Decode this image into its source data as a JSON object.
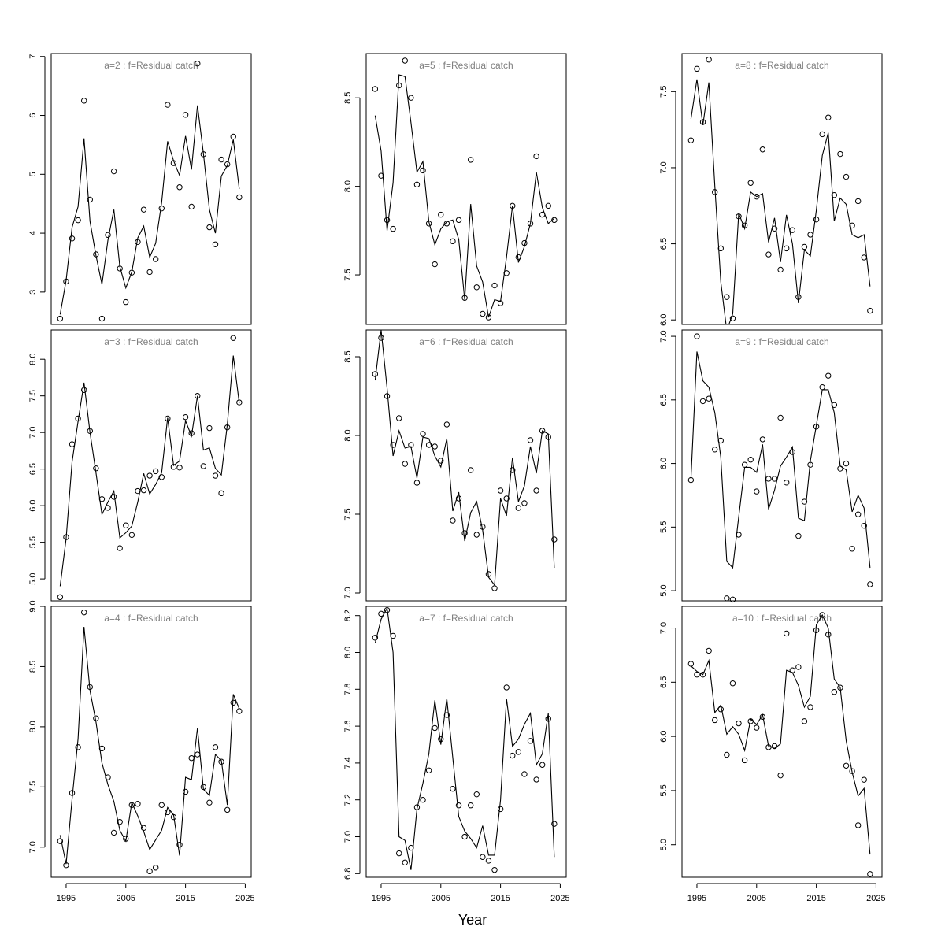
{
  "figure": {
    "xlabel": "Year",
    "x_ticks": [
      1995,
      2005,
      2015,
      2025
    ],
    "x_tick_labels": [
      "1995",
      "2005",
      "2015",
      "2025"
    ]
  },
  "chart_data": [
    {
      "type": "scatter+line",
      "title": "a=2  :  f=Residual catch",
      "xlim": [
        1992.5,
        2026
      ],
      "ylim": [
        2.45,
        7.05
      ],
      "y_ticks": [
        3,
        4,
        5,
        6,
        7
      ],
      "y_tick_labels": [
        "3",
        "4",
        "5",
        "6",
        "7"
      ],
      "x": [
        1994,
        1995,
        1996,
        1997,
        1998,
        1999,
        2000,
        2001,
        2002,
        2003,
        2004,
        2005,
        2006,
        2007,
        2008,
        2009,
        2010,
        2011,
        2012,
        2013,
        2014,
        2015,
        2016,
        2017,
        2018,
        2019,
        2020,
        2021,
        2022,
        2023,
        2024
      ],
      "observed": [
        2.55,
        3.18,
        3.91,
        4.22,
        6.25,
        4.57,
        3.64,
        2.55,
        3.97,
        5.05,
        3.4,
        2.83,
        3.33,
        3.85,
        4.4,
        3.34,
        3.56,
        4.42,
        6.18,
        5.19,
        4.78,
        6.01,
        4.45,
        6.88,
        5.34,
        4.1,
        3.81,
        5.25,
        5.17,
        5.64,
        4.61
      ],
      "fitted": [
        2.62,
        3.2,
        4.1,
        4.45,
        5.61,
        4.2,
        3.62,
        3.13,
        3.88,
        4.4,
        3.43,
        3.07,
        3.34,
        3.92,
        4.12,
        3.59,
        3.83,
        4.52,
        5.56,
        5.23,
        4.98,
        5.65,
        5.08,
        6.17,
        5.35,
        4.4,
        4.0,
        4.97,
        5.15,
        5.59,
        4.75
      ]
    },
    {
      "type": "scatter+line",
      "title": "a=3  :  f=Residual catch",
      "xlim": [
        1992.5,
        2026
      ],
      "ylim": [
        4.7,
        8.4
      ],
      "y_ticks": [
        5.0,
        5.5,
        6.0,
        6.5,
        7.0,
        7.5,
        8.0
      ],
      "y_tick_labels": [
        "5.0",
        "5.5",
        "6.0",
        "6.5",
        "7.0",
        "7.5",
        "8.0"
      ],
      "x": [
        1994,
        1995,
        1996,
        1997,
        1998,
        1999,
        2000,
        2001,
        2002,
        2003,
        2004,
        2005,
        2006,
        2007,
        2008,
        2009,
        2010,
        2011,
        2012,
        2013,
        2014,
        2015,
        2016,
        2017,
        2018,
        2019,
        2020,
        2021,
        2022,
        2023,
        2024
      ],
      "observed": [
        4.75,
        5.57,
        6.84,
        7.19,
        7.58,
        7.02,
        6.51,
        6.09,
        5.97,
        6.12,
        5.42,
        5.73,
        5.6,
        6.2,
        6.21,
        6.41,
        6.47,
        6.39,
        7.19,
        6.53,
        6.52,
        7.21,
        6.99,
        7.5,
        6.54,
        7.06,
        6.41,
        6.17,
        7.07,
        8.29,
        7.41
      ],
      "fitted": [
        4.9,
        5.55,
        6.6,
        7.15,
        7.68,
        7.0,
        6.45,
        5.88,
        6.05,
        6.2,
        5.56,
        5.63,
        5.72,
        6.05,
        6.44,
        6.16,
        6.29,
        6.45,
        7.2,
        6.55,
        6.61,
        7.16,
        6.95,
        7.5,
        6.76,
        6.79,
        6.51,
        6.42,
        7.11,
        8.05,
        7.4
      ]
    },
    {
      "type": "scatter+line",
      "title": "a=4  :  f=Residual catch",
      "xlim": [
        1992.5,
        2026
      ],
      "ylim": [
        6.75,
        9.0
      ],
      "y_ticks": [
        7.0,
        7.5,
        8.0,
        8.5,
        9.0
      ],
      "y_tick_labels": [
        "7.0",
        "7.5",
        "8.0",
        "8.5",
        "9.0"
      ],
      "x": [
        1994,
        1995,
        1996,
        1997,
        1998,
        1999,
        2000,
        2001,
        2002,
        2003,
        2004,
        2005,
        2006,
        2007,
        2008,
        2009,
        2010,
        2011,
        2012,
        2013,
        2014,
        2015,
        2016,
        2017,
        2018,
        2019,
        2020,
        2021,
        2022,
        2023,
        2024
      ],
      "observed": [
        7.05,
        6.85,
        7.45,
        7.83,
        8.95,
        8.33,
        8.07,
        7.82,
        7.58,
        7.12,
        7.21,
        7.07,
        7.35,
        7.36,
        7.16,
        6.8,
        6.83,
        7.35,
        7.29,
        7.25,
        7.02,
        7.46,
        7.74,
        7.77,
        7.5,
        7.37,
        7.83,
        7.71,
        7.31,
        8.2,
        8.13
      ],
      "fitted": [
        7.1,
        6.86,
        7.4,
        7.9,
        8.83,
        8.3,
        8.04,
        7.7,
        7.52,
        7.38,
        7.14,
        7.05,
        7.37,
        7.26,
        7.13,
        6.98,
        7.06,
        7.14,
        7.33,
        7.27,
        6.93,
        7.58,
        7.56,
        7.99,
        7.48,
        7.43,
        7.77,
        7.72,
        7.35,
        8.27,
        8.15
      ]
    },
    {
      "type": "scatter+line",
      "title": "a=5  :  f=Residual catch",
      "xlim": [
        1992.5,
        2026
      ],
      "ylim": [
        7.22,
        8.75
      ],
      "y_ticks": [
        7.5,
        8.0,
        8.5
      ],
      "y_tick_labels": [
        "7.5",
        "8.0",
        "8.5"
      ],
      "x": [
        1994,
        1995,
        1996,
        1997,
        1998,
        1999,
        2000,
        2001,
        2002,
        2003,
        2004,
        2005,
        2006,
        2007,
        2008,
        2009,
        2010,
        2011,
        2012,
        2013,
        2014,
        2015,
        2016,
        2017,
        2018,
        2019,
        2020,
        2021,
        2022,
        2023,
        2024
      ],
      "observed": [
        8.55,
        8.06,
        7.81,
        7.76,
        8.57,
        8.71,
        8.5,
        8.01,
        8.09,
        7.79,
        7.56,
        7.84,
        7.79,
        7.69,
        7.81,
        7.37,
        8.15,
        7.43,
        7.28,
        7.26,
        7.44,
        7.34,
        7.51,
        7.89,
        7.6,
        7.68,
        7.79,
        8.17,
        7.84,
        7.89,
        7.81
      ],
      "fitted": [
        8.4,
        8.2,
        7.75,
        8.02,
        8.63,
        8.62,
        8.36,
        8.08,
        8.14,
        7.8,
        7.67,
        7.76,
        7.8,
        7.81,
        7.7,
        7.36,
        7.9,
        7.55,
        7.46,
        7.26,
        7.36,
        7.35,
        7.6,
        7.89,
        7.57,
        7.66,
        7.79,
        8.08,
        7.88,
        7.79,
        7.82
      ]
    },
    {
      "type": "scatter+line",
      "title": "a=6  :  f=Residual catch",
      "xlim": [
        1992.5,
        2026
      ],
      "ylim": [
        6.95,
        8.67
      ],
      "y_ticks": [
        7.0,
        7.5,
        8.0,
        8.5
      ],
      "y_tick_labels": [
        "7.0",
        "7.5",
        "8.0",
        "8.5"
      ],
      "x": [
        1994,
        1995,
        1996,
        1997,
        1998,
        1999,
        2000,
        2001,
        2002,
        2003,
        2004,
        2005,
        2006,
        2007,
        2008,
        2009,
        2010,
        2011,
        2012,
        2013,
        2014,
        2015,
        2016,
        2017,
        2018,
        2019,
        2020,
        2021,
        2022,
        2023,
        2024
      ],
      "observed": [
        8.39,
        8.62,
        8.25,
        7.94,
        8.11,
        7.82,
        7.94,
        7.7,
        8.01,
        7.94,
        7.93,
        7.84,
        8.07,
        7.46,
        7.6,
        7.38,
        7.78,
        7.37,
        7.42,
        7.12,
        7.03,
        7.65,
        7.6,
        7.78,
        7.54,
        7.57,
        7.97,
        7.65,
        8.03,
        7.99,
        7.34
      ],
      "fitted": [
        8.35,
        8.67,
        8.3,
        7.87,
        8.03,
        7.92,
        7.93,
        7.73,
        7.99,
        7.98,
        7.87,
        7.8,
        7.98,
        7.52,
        7.64,
        7.33,
        7.51,
        7.58,
        7.4,
        7.1,
        7.05,
        7.6,
        7.49,
        7.86,
        7.58,
        7.68,
        7.93,
        7.76,
        8.03,
        8.01,
        7.16
      ]
    },
    {
      "type": "scatter+line",
      "title": "a=7  :  f=Residual catch",
      "xlim": [
        1992.5,
        2026
      ],
      "ylim": [
        6.78,
        8.25
      ],
      "y_ticks": [
        6.8,
        7.0,
        7.2,
        7.4,
        7.6,
        7.8,
        8.0,
        8.2
      ],
      "y_tick_labels": [
        "6.8",
        "7.0",
        "7.2",
        "7.4",
        "7.6",
        "7.8",
        "8.0",
        "8.2"
      ],
      "x": [
        1994,
        1995,
        1996,
        1997,
        1998,
        1999,
        2000,
        2001,
        2002,
        2003,
        2004,
        2005,
        2006,
        2007,
        2008,
        2009,
        2010,
        2011,
        2012,
        2013,
        2014,
        2015,
        2016,
        2017,
        2018,
        2019,
        2020,
        2021,
        2022,
        2023,
        2024
      ],
      "observed": [
        8.08,
        8.21,
        8.23,
        8.09,
        6.91,
        6.86,
        6.94,
        7.16,
        7.2,
        7.36,
        7.59,
        7.53,
        7.66,
        7.26,
        7.17,
        7.0,
        7.17,
        7.23,
        6.89,
        6.87,
        6.82,
        7.15,
        7.81,
        7.44,
        7.46,
        7.34,
        7.52,
        7.31,
        7.39,
        7.64,
        7.07
      ],
      "fitted": [
        8.05,
        8.18,
        8.24,
        8.0,
        7.0,
        6.98,
        6.82,
        7.15,
        7.29,
        7.45,
        7.74,
        7.5,
        7.75,
        7.43,
        7.11,
        7.03,
        6.99,
        6.94,
        7.06,
        6.9,
        6.9,
        7.2,
        7.75,
        7.49,
        7.53,
        7.61,
        7.67,
        7.39,
        7.45,
        7.67,
        6.89
      ]
    },
    {
      "type": "scatter+line",
      "title": "a=8  :  f=Residual catch",
      "xlim": [
        1992.5,
        2026
      ],
      "ylim": [
        5.97,
        7.75
      ],
      "y_ticks": [
        6.0,
        6.5,
        7.0,
        7.5
      ],
      "y_tick_labels": [
        "6.0",
        "6.5",
        "7.0",
        "7.5"
      ],
      "x": [
        1994,
        1995,
        1996,
        1997,
        1998,
        1999,
        2000,
        2001,
        2002,
        2003,
        2004,
        2005,
        2006,
        2007,
        2008,
        2009,
        2010,
        2011,
        2012,
        2013,
        2014,
        2015,
        2016,
        2017,
        2018,
        2019,
        2020,
        2021,
        2022,
        2023,
        2024
      ],
      "observed": [
        7.18,
        7.65,
        7.3,
        7.71,
        6.84,
        6.47,
        6.15,
        6.01,
        6.68,
        6.62,
        6.9,
        6.81,
        7.12,
        6.43,
        6.6,
        6.33,
        6.47,
        6.59,
        6.15,
        6.48,
        6.56,
        6.66,
        7.22,
        7.33,
        6.82,
        7.09,
        6.94,
        6.62,
        6.78,
        6.41,
        6.06
      ],
      "fitted": [
        7.32,
        7.58,
        7.28,
        7.56,
        6.88,
        6.25,
        5.93,
        6.04,
        6.7,
        6.6,
        6.84,
        6.81,
        6.83,
        6.51,
        6.67,
        6.38,
        6.69,
        6.5,
        6.11,
        6.46,
        6.42,
        6.72,
        7.08,
        7.23,
        6.65,
        6.8,
        6.76,
        6.56,
        6.54,
        6.56,
        6.22
      ]
    },
    {
      "type": "scatter+line",
      "title": "a=9  :  f=Residual catch",
      "xlim": [
        1992.5,
        2026
      ],
      "ylim": [
        4.92,
        7.05
      ],
      "y_ticks": [
        5.0,
        5.5,
        6.0,
        6.5,
        7.0
      ],
      "y_tick_labels": [
        "5.0",
        "5.5",
        "6.0",
        "6.5",
        "7.0"
      ],
      "x": [
        1994,
        1995,
        1996,
        1997,
        1998,
        1999,
        2000,
        2001,
        2002,
        2003,
        2004,
        2005,
        2006,
        2007,
        2008,
        2009,
        2010,
        2011,
        2012,
        2013,
        2014,
        2015,
        2016,
        2017,
        2018,
        2019,
        2020,
        2021,
        2022,
        2023,
        2024
      ],
      "observed": [
        5.87,
        7.0,
        6.49,
        6.51,
        6.11,
        6.18,
        4.94,
        4.93,
        5.44,
        5.99,
        6.03,
        5.78,
        6.19,
        5.88,
        5.88,
        6.36,
        5.85,
        6.09,
        5.43,
        5.7,
        5.99,
        6.29,
        6.6,
        6.69,
        6.46,
        5.96,
        6.0,
        5.33,
        5.6,
        5.51,
        5.05
      ],
      "fitted": [
        5.88,
        6.88,
        6.65,
        6.6,
        6.4,
        6.05,
        5.23,
        5.18,
        5.58,
        5.97,
        5.97,
        5.93,
        6.15,
        5.64,
        5.79,
        5.98,
        6.05,
        6.13,
        5.57,
        5.55,
        6.02,
        6.3,
        6.58,
        6.58,
        6.4,
        5.98,
        5.95,
        5.62,
        5.75,
        5.65,
        5.18
      ]
    },
    {
      "type": "scatter+line",
      "title": "a=10  :  f=Residual catch",
      "xlim": [
        1992.5,
        2026
      ],
      "ylim": [
        4.7,
        7.2
      ],
      "y_ticks": [
        5.0,
        5.5,
        6.0,
        6.5,
        7.0
      ],
      "y_tick_labels": [
        "5.0",
        "5.5",
        "6.0",
        "6.5",
        "7.0"
      ],
      "x": [
        1994,
        1995,
        1996,
        1997,
        1998,
        1999,
        2000,
        2001,
        2002,
        2003,
        2004,
        2005,
        2006,
        2007,
        2008,
        2009,
        2010,
        2011,
        2012,
        2013,
        2014,
        2015,
        2016,
        2017,
        2018,
        2019,
        2020,
        2021,
        2022,
        2023,
        2024
      ],
      "observed": [
        6.67,
        6.57,
        6.57,
        6.79,
        6.15,
        6.25,
        5.83,
        6.49,
        6.12,
        5.78,
        6.14,
        6.08,
        6.18,
        5.9,
        5.91,
        5.64,
        6.95,
        6.61,
        6.64,
        6.14,
        6.27,
        6.98,
        7.12,
        6.94,
        6.41,
        6.45,
        5.73,
        5.68,
        5.18,
        5.6,
        4.73
      ],
      "fitted": [
        6.65,
        6.6,
        6.57,
        6.7,
        6.22,
        6.29,
        6.02,
        6.09,
        6.02,
        5.87,
        6.16,
        6.11,
        6.2,
        5.91,
        5.89,
        5.93,
        6.61,
        6.59,
        6.47,
        6.27,
        6.37,
        7.03,
        7.12,
        7.0,
        6.53,
        6.45,
        5.96,
        5.67,
        5.45,
        5.52,
        4.91
      ]
    }
  ]
}
